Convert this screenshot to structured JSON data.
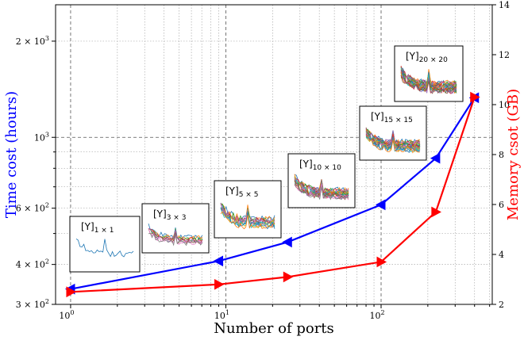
{
  "chart_data": {
    "type": "line",
    "xscale": "log",
    "yscale_left": "log",
    "xlabel": "Number of ports",
    "ylabel_left": "Time cost (hours)",
    "ylabel_right": "Memory csot (GB)",
    "xlim": [
      0.8,
      520
    ],
    "ylim_left": [
      300,
      2600
    ],
    "ylim_right": [
      2,
      14
    ],
    "grid": true,
    "x": [
      1,
      9,
      25,
      100,
      225,
      400
    ],
    "x_tick_labels": [
      "10^0",
      "10^1",
      "10^2"
    ],
    "y_left_tick_labels": [
      "3 × 10^2",
      "4 × 10^2",
      "6 × 10^2",
      "10^3",
      "2 × 10^3"
    ],
    "y_right_ticks": [
      2,
      4,
      6,
      8,
      10,
      12,
      14
    ],
    "series": [
      {
        "axis": "left",
        "color": "#0000ff",
        "marker": "triangle-left",
        "values": [
          335,
          410,
          470,
          615,
          860,
          1330
        ]
      },
      {
        "axis": "right",
        "color": "#ff0000",
        "marker": "triangle-right",
        "values": [
          2.5,
          2.8,
          3.1,
          3.7,
          5.7,
          10.3
        ]
      }
    ],
    "insets": [
      {
        "label": "[Y]",
        "sub": "1 × 1"
      },
      {
        "label": "[Y]",
        "sub": "3 × 3"
      },
      {
        "label": "[Y]",
        "sub": "5 × 5"
      },
      {
        "label": "[Y]",
        "sub": "10 × 10"
      },
      {
        "label": "[Y]",
        "sub": "15 × 15"
      },
      {
        "label": "[Y]",
        "sub": "20 × 20"
      }
    ]
  }
}
